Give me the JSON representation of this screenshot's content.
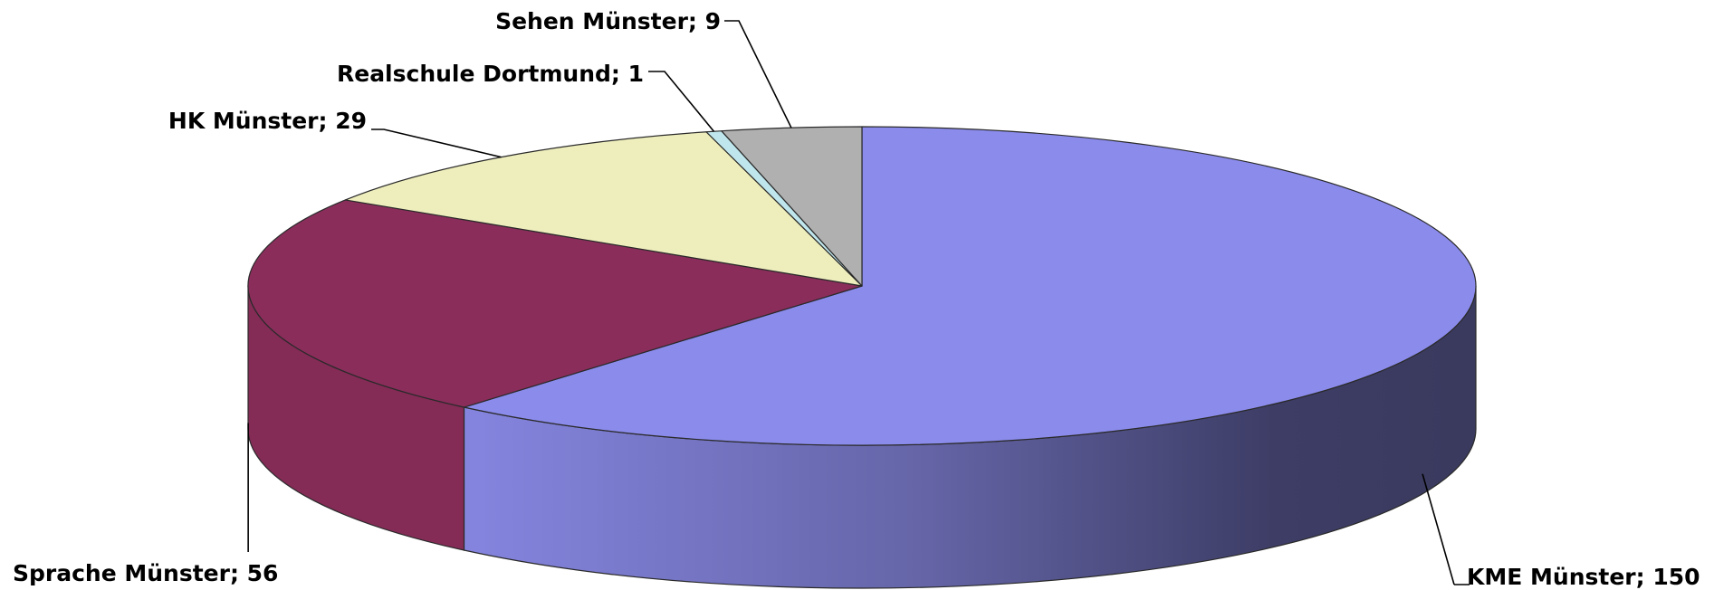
{
  "chart_data": {
    "type": "pie",
    "style": "3d",
    "slices": [
      {
        "label": "KME Münster",
        "value": 150,
        "color": "#8b8bec",
        "data_label": "KME Münster; 150"
      },
      {
        "label": "Sprache Münster",
        "value": 56,
        "color": "#8b2d5b",
        "data_label": "Sprache Münster; 56"
      },
      {
        "label": "HK Münster",
        "value": 29,
        "color": "#eeeebd",
        "data_label": "HK Münster; 29"
      },
      {
        "label": "Realschule Dortmund",
        "value": 1,
        "color": "#bfe6ec",
        "data_label": "Realschule Dortmund; 1"
      },
      {
        "label": "Sehen Münster",
        "value": 9,
        "color": "#b0b0b0",
        "data_label": "Sehen Münster; 9"
      }
    ]
  }
}
